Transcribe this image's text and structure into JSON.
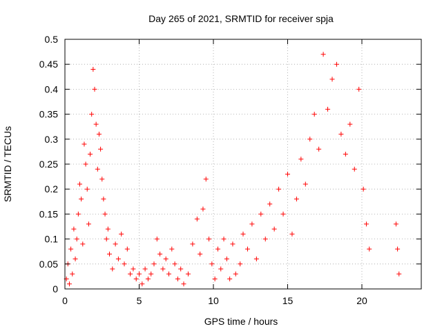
{
  "chart_data": {
    "type": "scatter",
    "title": "Day 265 of 2021, SRMTID for receiver spja",
    "xlabel": "GPS time / hours",
    "ylabel": "SRMTID / TECUs",
    "xlim": [
      0,
      24
    ],
    "ylim": [
      0,
      0.5
    ],
    "grid": true,
    "marker": "plus",
    "xticks": [
      0,
      5,
      10,
      15,
      20
    ],
    "xtick_labels": [
      "0",
      "5",
      "10",
      "15",
      "20"
    ],
    "yticks": [
      0,
      0.05,
      0.1,
      0.15,
      0.2,
      0.25,
      0.3,
      0.35,
      0.4,
      0.45,
      0.5
    ],
    "ytick_labels": [
      "0",
      "0.05",
      "0.1",
      "0.15",
      "0.2",
      "0.25",
      "0.3",
      "0.35",
      "0.4",
      "0.45",
      "0.5"
    ],
    "series": [
      {
        "name": "SRMTID",
        "color": "#ff0000",
        "points": [
          [
            0.1,
            0.02
          ],
          [
            0.2,
            0.05
          ],
          [
            0.3,
            0.01
          ],
          [
            0.4,
            0.08
          ],
          [
            0.5,
            0.03
          ],
          [
            0.6,
            0.12
          ],
          [
            0.7,
            0.06
          ],
          [
            0.8,
            0.1
          ],
          [
            0.9,
            0.15
          ],
          [
            1.0,
            0.21
          ],
          [
            1.1,
            0.18
          ],
          [
            1.2,
            0.09
          ],
          [
            1.3,
            0.29
          ],
          [
            1.4,
            0.25
          ],
          [
            1.5,
            0.2
          ],
          [
            1.6,
            0.13
          ],
          [
            1.7,
            0.27
          ],
          [
            1.8,
            0.35
          ],
          [
            1.9,
            0.44
          ],
          [
            2.0,
            0.4
          ],
          [
            2.1,
            0.33
          ],
          [
            2.2,
            0.24
          ],
          [
            2.3,
            0.31
          ],
          [
            2.4,
            0.28
          ],
          [
            2.5,
            0.22
          ],
          [
            2.6,
            0.18
          ],
          [
            2.7,
            0.15
          ],
          [
            2.8,
            0.1
          ],
          [
            2.9,
            0.12
          ],
          [
            3.0,
            0.07
          ],
          [
            3.2,
            0.04
          ],
          [
            3.4,
            0.09
          ],
          [
            3.6,
            0.06
          ],
          [
            3.8,
            0.11
          ],
          [
            4.0,
            0.05
          ],
          [
            4.2,
            0.08
          ],
          [
            4.4,
            0.03
          ],
          [
            4.6,
            0.04
          ],
          [
            4.8,
            0.02
          ],
          [
            5.0,
            0.03
          ],
          [
            5.2,
            0.01
          ],
          [
            5.4,
            0.04
          ],
          [
            5.6,
            0.02
          ],
          [
            5.8,
            0.03
          ],
          [
            6.0,
            0.05
          ],
          [
            6.2,
            0.1
          ],
          [
            6.4,
            0.07
          ],
          [
            6.6,
            0.04
          ],
          [
            6.8,
            0.06
          ],
          [
            7.0,
            0.03
          ],
          [
            7.2,
            0.08
          ],
          [
            7.4,
            0.05
          ],
          [
            7.6,
            0.02
          ],
          [
            7.8,
            0.04
          ],
          [
            8.0,
            0.01
          ],
          [
            8.3,
            0.03
          ],
          [
            8.6,
            0.09
          ],
          [
            8.9,
            0.14
          ],
          [
            9.1,
            0.07
          ],
          [
            9.3,
            0.16
          ],
          [
            9.5,
            0.22
          ],
          [
            9.7,
            0.1
          ],
          [
            9.9,
            0.05
          ],
          [
            10.1,
            0.02
          ],
          [
            10.3,
            0.08
          ],
          [
            10.5,
            0.04
          ],
          [
            10.7,
            0.1
          ],
          [
            10.9,
            0.06
          ],
          [
            11.1,
            0.02
          ],
          [
            11.3,
            0.09
          ],
          [
            11.5,
            0.03
          ],
          [
            11.8,
            0.05
          ],
          [
            12.0,
            0.11
          ],
          [
            12.3,
            0.08
          ],
          [
            12.6,
            0.13
          ],
          [
            12.9,
            0.06
          ],
          [
            13.2,
            0.15
          ],
          [
            13.5,
            0.1
          ],
          [
            13.8,
            0.17
          ],
          [
            14.1,
            0.12
          ],
          [
            14.4,
            0.2
          ],
          [
            14.7,
            0.15
          ],
          [
            15.0,
            0.23
          ],
          [
            15.3,
            0.11
          ],
          [
            15.6,
            0.18
          ],
          [
            15.9,
            0.26
          ],
          [
            16.2,
            0.21
          ],
          [
            16.5,
            0.3
          ],
          [
            16.8,
            0.35
          ],
          [
            17.1,
            0.28
          ],
          [
            17.4,
            0.47
          ],
          [
            17.7,
            0.36
          ],
          [
            18.0,
            0.42
          ],
          [
            18.3,
            0.45
          ],
          [
            18.6,
            0.31
          ],
          [
            18.9,
            0.27
          ],
          [
            19.2,
            0.33
          ],
          [
            19.5,
            0.24
          ],
          [
            19.8,
            0.4
          ],
          [
            20.1,
            0.2
          ],
          [
            20.3,
            0.13
          ],
          [
            20.5,
            0.08
          ],
          [
            22.3,
            0.13
          ],
          [
            22.4,
            0.08
          ],
          [
            22.5,
            0.03
          ]
        ]
      }
    ]
  }
}
